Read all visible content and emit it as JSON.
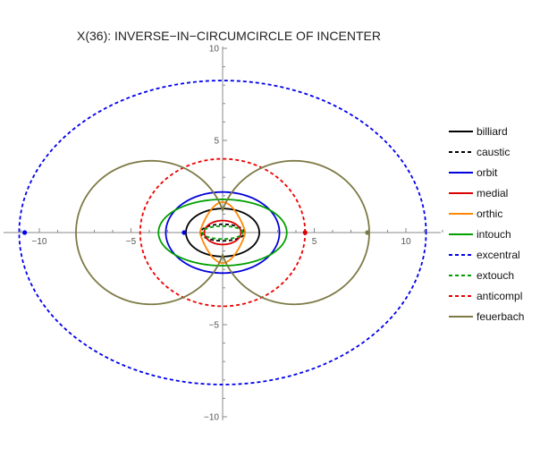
{
  "chart_data": {
    "type": "line",
    "title": "X(36): INVERSE−IN−CIRCUMCIRCLE OF INCENTER",
    "xlabel": "",
    "ylabel": "",
    "xlim": [
      -11.5,
      12.5
    ],
    "ylim": [
      -10,
      10
    ],
    "grid": false,
    "legend_position": "right",
    "x_ticks": [
      -10,
      -5,
      5,
      10
    ],
    "y_ticks": [
      10,
      5,
      -5,
      -10
    ],
    "x_tick_labels": [
      "−10",
      "−5",
      "5",
      "10"
    ],
    "y_tick_labels": [
      "10",
      "5",
      "−5",
      "−10"
    ],
    "series": [
      {
        "name": "billiard",
        "color": "#000000",
        "dash": "solid",
        "shape": "ellipse",
        "center": [
          0,
          0
        ],
        "rx": 2.0,
        "ry": 1.3
      },
      {
        "name": "caustic",
        "color": "#000000",
        "dash": "dashed",
        "shape": "ellipse",
        "center": [
          0,
          0
        ],
        "rx": 1.2,
        "ry": 0.45
      },
      {
        "name": "orbit",
        "color": "#0000dd",
        "dash": "solid",
        "shape": "ellipse",
        "center": [
          0,
          0
        ],
        "rx": 3.1,
        "ry": 2.2
      },
      {
        "name": "medial",
        "color": "#dd0000",
        "dash": "solid",
        "shape": "ellipse",
        "center": [
          0,
          0
        ],
        "rx": 1.0,
        "ry": 0.65
      },
      {
        "name": "orthic",
        "color": "#ff8800",
        "dash": "solid",
        "shape": "lemniscate",
        "center": [
          0,
          0
        ],
        "rx": 1.3,
        "ry": 1.65
      },
      {
        "name": "intouch",
        "color": "#00a000",
        "dash": "solid",
        "shape": "ellipse",
        "center": [
          0,
          0
        ],
        "rx": 3.5,
        "ry": 1.8
      },
      {
        "name": "excentral",
        "color": "#0000ee",
        "dash": "dashed",
        "shape": "ellipse",
        "center": [
          0,
          0
        ],
        "rx": 11.1,
        "ry": 8.25
      },
      {
        "name": "extouch",
        "color": "#00a000",
        "dash": "dashed",
        "shape": "ellipse",
        "center": [
          0,
          0
        ],
        "rx": 1.1,
        "ry": 0.35
      },
      {
        "name": "anticompl",
        "color": "#ee0000",
        "dash": "dashed",
        "shape": "ellipse",
        "center": [
          0,
          0
        ],
        "rx": 4.5,
        "ry": 4.0
      },
      {
        "name": "feuerbach",
        "color": "#7d7a45",
        "dash": "solid",
        "shape": "bilobe",
        "lobe_center_x": 3.9,
        "lobe_radius": 4.1,
        "center": [
          0,
          0
        ]
      }
    ],
    "markers": [
      {
        "x": -10.8,
        "y": 0,
        "color": "#0000ee"
      },
      {
        "x": -2.1,
        "y": 0,
        "color": "#0000dd"
      },
      {
        "x": 4.5,
        "y": 0,
        "color": "#dd0000"
      },
      {
        "x": 7.9,
        "y": 0,
        "color": "#7d7a45"
      }
    ]
  }
}
